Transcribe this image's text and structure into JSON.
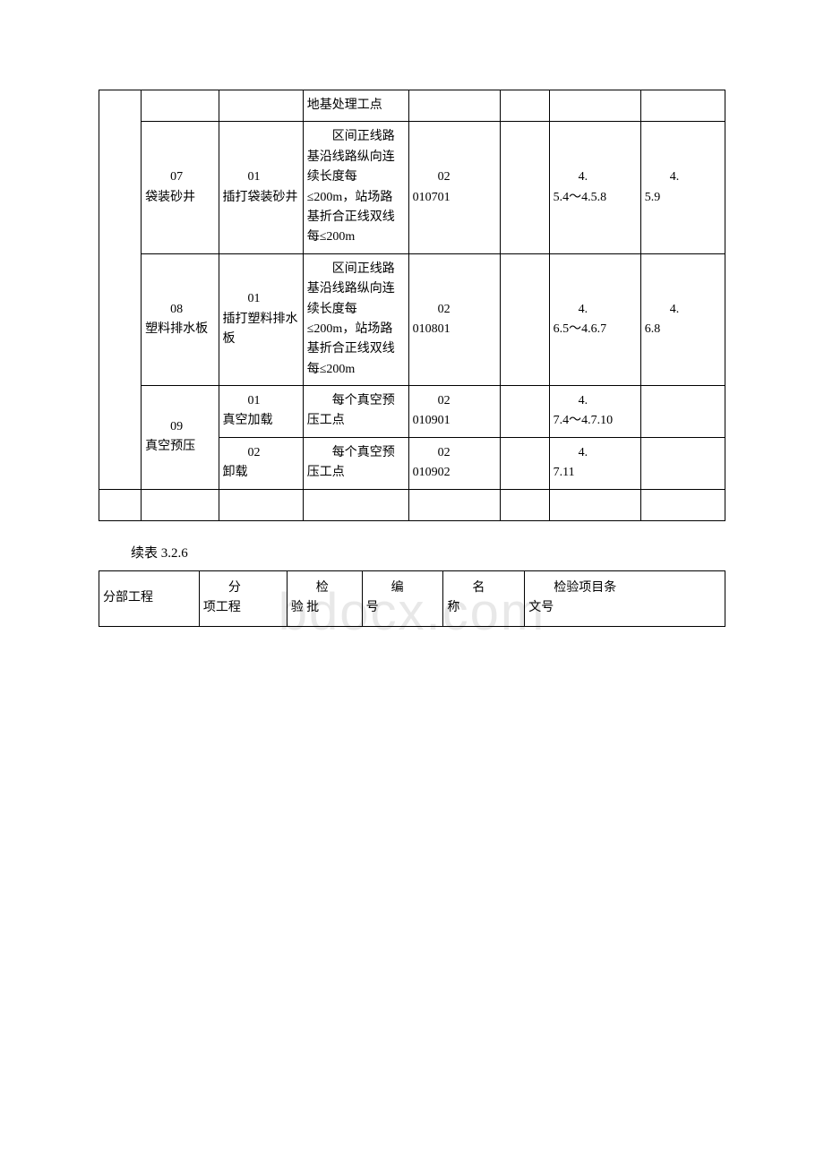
{
  "table1": {
    "rows": [
      {
        "c1": "",
        "c2": "",
        "c3": "",
        "c4": "地基处理工点",
        "c5": "",
        "c6": "",
        "c7": "",
        "c8": ""
      },
      {
        "c2_a": "07",
        "c2_b": "袋装砂井",
        "c3_a": "01",
        "c3_b": "插打袋装砂井",
        "c4_a": "区",
        "c4_b": "间正线路基沿线路纵向连续长度每≤200m，站场路基折合正线双线每≤200m",
        "c5_a": "02",
        "c5_b": "010701",
        "c6": "",
        "c7_a": "4.",
        "c7_b": "5.4～4.5.8",
        "c8_a": "4.",
        "c8_b": "5.9"
      },
      {
        "c2_a": "08",
        "c2_b": "塑料排水板",
        "c3_a": "01",
        "c3_b": "插打塑料排水板",
        "c4_a": "区",
        "c4_b": "间正线路基沿线路纵向连续长度每≤200m，站场路基折合正线双线每≤200m",
        "c5_a": "02",
        "c5_b": "010801",
        "c6": "",
        "c7_a": "4.",
        "c7_b": "6.5～4.6.7",
        "c8_a": "4.",
        "c8_b": "6.8"
      },
      {
        "c2_a": "09",
        "c2_b": "真空预压",
        "r1": {
          "c3_a": "01",
          "c3_b": "真空加载",
          "c4_a": "每",
          "c4_b": "个真空预压工点",
          "c5_a": "02",
          "c5_b": "010901",
          "c6": "",
          "c7_a": "4.",
          "c7_b": "7.4～4.7.10",
          "c8": ""
        },
        "r2": {
          "c3_a": "02",
          "c3_b": "卸载",
          "c4_a": "每",
          "c4_b": "个真空预压工点",
          "c5_a": "02",
          "c5_b": "010902",
          "c6": "",
          "c7_a": "4.",
          "c7_b": "7.11",
          "c8": ""
        }
      }
    ]
  },
  "caption": "续表 3.2.6",
  "table2": {
    "headers": {
      "c1": "分部工程",
      "c2_a": "分",
      "c2_b": "项工程",
      "c3_a": "检",
      "c3_b": "验 批",
      "c4_a": "编",
      "c4_b": "号",
      "c5_a": "名",
      "c5_b": "称",
      "c6_a": "检验项目条",
      "c6_b": "文号"
    }
  },
  "style": {
    "background": "#ffffff",
    "border_color": "#000000",
    "font_size_cell": 14,
    "font_size_caption": 15,
    "watermark_color": "#e8e8e8"
  }
}
